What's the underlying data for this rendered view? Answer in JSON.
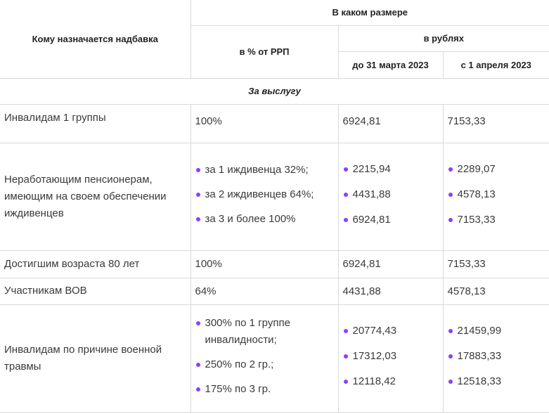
{
  "header": {
    "who": "Кому назначается надбавка",
    "how_much": "В каком размере",
    "percent": "в % от РРП",
    "rubles": "в рублях",
    "until": "до 31 марта 2023",
    "from": "с 1 апреля 2023"
  },
  "section_title": "За выслугу",
  "rows": [
    {
      "who": "Инвалидам 1 группы",
      "percent": "100%",
      "until": "6924,81",
      "from": "7153,33"
    },
    {
      "who": "Неработающим пенсионерам, имеющим на своем обеспечении иждивенцев",
      "percent_list": [
        "за 1 иждивенца 32%;",
        "за 2 иждивенцев 64%;",
        "за 3 и более 100%"
      ],
      "until_list": [
        "2215,94",
        "4431,88",
        "6924,81"
      ],
      "from_list": [
        "2289,07",
        "4578,13",
        "7153,33"
      ]
    },
    {
      "who": "Достигшим возраста 80 лет",
      "percent": "100%",
      "until": "6924,81",
      "from": "7153,33"
    },
    {
      "who": "Участникам ВОВ",
      "percent": "64%",
      "until": "4431,88",
      "from": "4578,13"
    },
    {
      "who": "Инвалидам по причине военной травмы",
      "percent_list": [
        "300% по 1 группе инвалидности;",
        "250% по 2 гр.;",
        "175% по 3 гр."
      ],
      "until_list": [
        "20774,43",
        "17312,03",
        "12118,42"
      ],
      "from_list": [
        "21459,99",
        "17883,33",
        "12518,33"
      ]
    }
  ],
  "colors": {
    "bullet": "#8a3ffc",
    "border": "#d9d9d9"
  }
}
